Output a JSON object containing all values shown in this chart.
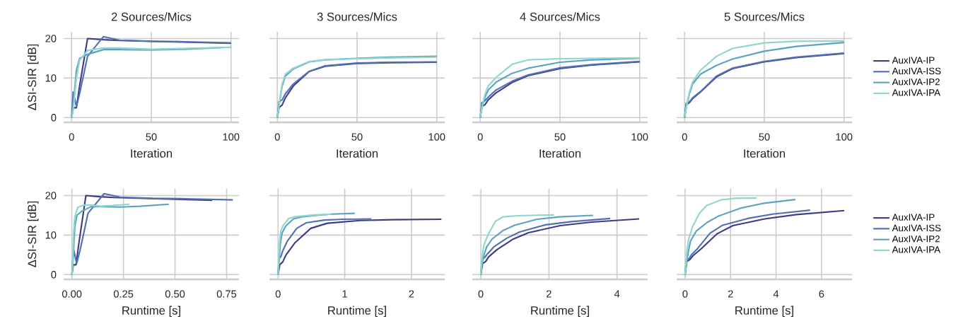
{
  "chart_data": [
    {
      "type": "line",
      "title": "2 Sources/Mics",
      "xlabel": "Iteration",
      "ylabel": "ΔSI-SIR [dB]",
      "xlim": [
        -5,
        105
      ],
      "ylim": [
        -1.2,
        21.7
      ],
      "xticks": [
        0,
        50,
        100
      ],
      "yticks": [
        0,
        10,
        20
      ],
      "grid": true,
      "line_style": "solid",
      "series": [
        {
          "color": "#3f3c86",
          "x": [
            0,
            1,
            3,
            5,
            10,
            20,
            30,
            50,
            70,
            100
          ],
          "values": [
            0,
            2.5,
            2.5,
            8,
            20,
            19.7,
            19.5,
            19.3,
            19.1,
            18.8
          ]
        },
        {
          "color": "#5070b6",
          "x": [
            0,
            1,
            3,
            5,
            10,
            20,
            30,
            50,
            70,
            100
          ],
          "values": [
            0,
            6.5,
            2.8,
            6,
            15.5,
            20.5,
            19.6,
            19.3,
            19.2,
            18.9
          ]
        },
        {
          "color": "#5aa3c2",
          "x": [
            0,
            1,
            3,
            5,
            10,
            20,
            30,
            50,
            70,
            100
          ],
          "values": [
            0,
            3,
            12,
            15,
            16,
            17.2,
            17.2,
            17.1,
            17.3,
            17.8
          ]
        },
        {
          "color": "#8fd6cc",
          "x": [
            0,
            1,
            3,
            5,
            10,
            20,
            30,
            50,
            70,
            100
          ],
          "values": [
            0,
            2,
            10,
            14.5,
            17,
            17.6,
            17.6,
            17.3,
            17.5,
            17.8
          ]
        }
      ]
    },
    {
      "type": "line",
      "title": "3 Sources/Mics",
      "xlabel": "Iteration",
      "xlim": [
        -5,
        105
      ],
      "ylim": [
        -1.2,
        21.7
      ],
      "xticks": [
        0,
        50,
        100
      ],
      "yticks": [
        0,
        10,
        20
      ],
      "grid": true,
      "line_style": "solid",
      "tick_labels": "x",
      "series": [
        {
          "color": "#3f3c86",
          "x": [
            0,
            1,
            3,
            5,
            10,
            20,
            30,
            50,
            70,
            100
          ],
          "values": [
            0,
            2.5,
            3.2,
            5,
            8,
            11.7,
            13,
            13.7,
            13.9,
            14
          ]
        },
        {
          "color": "#5070b6",
          "x": [
            0,
            1,
            3,
            5,
            10,
            20,
            30,
            50,
            70,
            100
          ],
          "values": [
            0,
            4,
            4.5,
            6,
            8.5,
            11.7,
            13.1,
            13.8,
            14,
            14.1
          ]
        },
        {
          "color": "#5aa3c2",
          "x": [
            0,
            1,
            3,
            5,
            10,
            20,
            30,
            50,
            70,
            100
          ],
          "values": [
            0,
            3,
            8,
            10.5,
            12.3,
            14.1,
            14.6,
            15,
            15.3,
            15.5
          ]
        },
        {
          "color": "#8fd6cc",
          "x": [
            0,
            1,
            3,
            5,
            10,
            20,
            30,
            50,
            70,
            100
          ],
          "values": [
            0,
            3,
            8.5,
            11,
            12.5,
            14.2,
            14.6,
            14.9,
            15.1,
            15.3
          ]
        }
      ]
    },
    {
      "type": "line",
      "title": "4 Sources/Mics",
      "xlabel": "Iteration",
      "xlim": [
        -5,
        105
      ],
      "ylim": [
        -1.2,
        21.7
      ],
      "xticks": [
        0,
        50,
        100
      ],
      "yticks": [
        0,
        10,
        20
      ],
      "grid": true,
      "line_style": "solid",
      "tick_labels": "x",
      "series": [
        {
          "color": "#3f3c86",
          "x": [
            0,
            1,
            3,
            5,
            10,
            20,
            30,
            50,
            70,
            100
          ],
          "values": [
            0,
            2.8,
            3.3,
            4.5,
            6.3,
            8.9,
            10.6,
            12.4,
            13.3,
            14.1
          ]
        },
        {
          "color": "#5070b6",
          "x": [
            0,
            1,
            3,
            5,
            10,
            20,
            30,
            50,
            70,
            100
          ],
          "values": [
            0,
            3.8,
            4.3,
            5.2,
            7,
            9.2,
            10.8,
            12.6,
            13.4,
            14.2
          ]
        },
        {
          "color": "#5aa3c2",
          "x": [
            0,
            1,
            3,
            5,
            10,
            20,
            30,
            50,
            70,
            100
          ],
          "values": [
            0,
            2.5,
            5.2,
            7,
            9,
            11.2,
            12.5,
            14,
            14.6,
            15
          ]
        },
        {
          "color": "#8fd6cc",
          "x": [
            0,
            1,
            3,
            5,
            10,
            20,
            30,
            50,
            70,
            100
          ],
          "values": [
            0,
            2.5,
            6,
            8,
            10.2,
            13.5,
            14.6,
            14.9,
            15,
            15.1
          ]
        }
      ]
    },
    {
      "type": "line",
      "title": "5 Sources/Mics",
      "xlabel": "Iteration",
      "xlim": [
        -5,
        105
      ],
      "ylim": [
        -1.2,
        21.7
      ],
      "xticks": [
        0,
        50,
        100
      ],
      "yticks": [
        0,
        10,
        20
      ],
      "grid": true,
      "line_style": "solid",
      "tick_labels": "x",
      "legend": "right",
      "series": [
        {
          "name": "AuxIVA-IP",
          "color": "#3f3c86",
          "x": [
            0,
            1,
            3,
            5,
            10,
            20,
            30,
            50,
            70,
            100
          ],
          "values": [
            0,
            3.3,
            3.8,
            4.8,
            6.5,
            10.3,
            12.4,
            14.1,
            15.2,
            16.2
          ]
        },
        {
          "name": "AuxIVA-ISS",
          "color": "#5070b6",
          "x": [
            0,
            1,
            3,
            5,
            10,
            20,
            30,
            50,
            70,
            100
          ],
          "values": [
            0,
            3.6,
            4,
            5,
            6.6,
            10.5,
            12.5,
            14.2,
            15.3,
            16.3
          ]
        },
        {
          "name": "AuxIVA-IP2",
          "color": "#5aa3c2",
          "x": [
            0,
            1,
            3,
            5,
            10,
            20,
            30,
            50,
            70,
            100
          ],
          "values": [
            0,
            2.5,
            6,
            8.5,
            11,
            13.2,
            14.8,
            16.8,
            18,
            19
          ]
        },
        {
          "name": "AuxIVA-IPA",
          "color": "#8fd6cc",
          "x": [
            0,
            1,
            3,
            5,
            10,
            20,
            30,
            50,
            70,
            100
          ],
          "values": [
            0,
            2.5,
            6.5,
            9,
            12,
            15.5,
            17.5,
            18.9,
            19.3,
            19.4
          ]
        }
      ]
    },
    {
      "type": "line",
      "xlabel": "Runtime [s]",
      "ylabel": "ΔSI-SIR [dB]",
      "xlim": [
        -0.04,
        0.81
      ],
      "ylim": [
        -1.2,
        21.7
      ],
      "xticks": [
        {
          "value": 0,
          "label": "0.00"
        },
        0.25,
        {
          "value": 0.5,
          "label": "0.50"
        },
        0.75
      ],
      "yticks": [
        0,
        10,
        20
      ],
      "grid": true,
      "line_style": "solid",
      "series": [
        {
          "color": "#3f3c86",
          "x": [
            0,
            0.007,
            0.02,
            0.034,
            0.068,
            0.136,
            0.204,
            0.34,
            0.476,
            0.68
          ],
          "values": [
            0,
            2.5,
            2.5,
            8,
            20,
            19.7,
            19.5,
            19.3,
            19.1,
            18.8
          ]
        },
        {
          "color": "#5070b6",
          "x": [
            0,
            0.008,
            0.023,
            0.039,
            0.078,
            0.156,
            0.234,
            0.39,
            0.546,
            0.78
          ],
          "values": [
            0,
            6.5,
            2.8,
            6,
            15.5,
            20.5,
            19.6,
            19.3,
            19.2,
            18.9
          ]
        },
        {
          "color": "#5aa3c2",
          "x": [
            0,
            0.005,
            0.014,
            0.024,
            0.047,
            0.094,
            0.141,
            0.235,
            0.329,
            0.47
          ],
          "values": [
            0,
            3,
            12,
            15,
            16,
            17.2,
            17.2,
            17.1,
            17.3,
            17.8
          ]
        },
        {
          "color": "#8fd6cc",
          "x": [
            0,
            0.003,
            0.008,
            0.014,
            0.028,
            0.056,
            0.084,
            0.14,
            0.196,
            0.28
          ],
          "values": [
            0,
            2,
            10,
            14.5,
            17,
            17.6,
            17.6,
            17.3,
            17.5,
            17.8
          ]
        }
      ]
    },
    {
      "type": "line",
      "xlabel": "Runtime [s]",
      "xlim": [
        -0.13,
        2.5
      ],
      "ylim": [
        -1.2,
        21.7
      ],
      "xticks": [
        0,
        1,
        2
      ],
      "yticks": [
        0,
        10,
        20
      ],
      "grid": true,
      "line_style": "solid",
      "tick_labels": "x",
      "series": [
        {
          "color": "#3f3c86",
          "x": [
            0,
            0.025,
            0.07,
            0.12,
            0.25,
            0.49,
            0.74,
            1.23,
            1.72,
            2.45
          ],
          "values": [
            0,
            2.5,
            3.2,
            5,
            8,
            11.7,
            13,
            13.7,
            13.9,
            14
          ]
        },
        {
          "color": "#5070b6",
          "x": [
            0,
            0.014,
            0.04,
            0.07,
            0.14,
            0.28,
            0.42,
            0.7,
            0.98,
            1.4
          ],
          "values": [
            0,
            4,
            4.5,
            6,
            8.5,
            11.7,
            13.1,
            13.8,
            14,
            14.1
          ]
        },
        {
          "color": "#5aa3c2",
          "x": [
            0,
            0.012,
            0.035,
            0.06,
            0.115,
            0.23,
            0.35,
            0.58,
            0.8,
            1.15
          ],
          "values": [
            0,
            3,
            8,
            10.5,
            12.3,
            14.1,
            14.6,
            15,
            15.3,
            15.5
          ]
        },
        {
          "color": "#8fd6cc",
          "x": [
            0,
            0.008,
            0.024,
            0.04,
            0.08,
            0.16,
            0.24,
            0.4,
            0.56,
            0.8
          ],
          "values": [
            0,
            3,
            8.5,
            11,
            12.5,
            14.2,
            14.6,
            14.9,
            15.1,
            15.3
          ]
        }
      ]
    },
    {
      "type": "line",
      "xlabel": "Runtime [s]",
      "xlim": [
        -0.25,
        4.9
      ],
      "ylim": [
        -1.2,
        21.7
      ],
      "xticks": [
        0,
        2,
        4
      ],
      "yticks": [
        0,
        10,
        20
      ],
      "grid": true,
      "line_style": "solid",
      "tick_labels": "x",
      "series": [
        {
          "color": "#3f3c86",
          "x": [
            0,
            0.05,
            0.14,
            0.23,
            0.47,
            0.93,
            1.4,
            2.33,
            3.26,
            4.65
          ],
          "values": [
            0,
            2.8,
            3.3,
            4.5,
            6.3,
            8.9,
            10.6,
            12.4,
            13.3,
            14.1
          ]
        },
        {
          "color": "#5070b6",
          "x": [
            0,
            0.04,
            0.11,
            0.19,
            0.38,
            0.76,
            1.14,
            1.9,
            2.66,
            3.8
          ],
          "values": [
            0,
            3.8,
            4.3,
            5.2,
            7,
            9.2,
            10.8,
            12.6,
            13.4,
            14.2
          ]
        },
        {
          "color": "#5aa3c2",
          "x": [
            0,
            0.03,
            0.1,
            0.17,
            0.33,
            0.66,
            0.99,
            1.65,
            2.31,
            3.3
          ],
          "values": [
            0,
            2.5,
            5.2,
            7,
            9,
            11.2,
            12.5,
            14,
            14.6,
            15
          ]
        },
        {
          "color": "#8fd6cc",
          "x": [
            0,
            0.02,
            0.06,
            0.11,
            0.22,
            0.43,
            0.65,
            1.08,
            1.5,
            2.15
          ],
          "values": [
            0,
            2.5,
            6,
            8,
            10.2,
            13.5,
            14.6,
            14.9,
            15,
            15.1
          ]
        }
      ]
    },
    {
      "type": "line",
      "xlabel": "Runtime [s]",
      "xlim": [
        -0.37,
        7.34
      ],
      "ylim": [
        -1.2,
        21.7
      ],
      "xticks": [
        0,
        2,
        4,
        6
      ],
      "yticks": [
        0,
        10,
        20
      ],
      "grid": true,
      "line_style": "solid",
      "tick_labels": "x",
      "legend": "right",
      "series": [
        {
          "name": "AuxIVA-IP",
          "color": "#3f3c86",
          "x": [
            0,
            0.07,
            0.21,
            0.35,
            0.7,
            1.4,
            2.1,
            3.5,
            4.9,
            7
          ],
          "values": [
            0,
            3.3,
            3.8,
            4.8,
            6.5,
            10.3,
            12.4,
            14.1,
            15.2,
            16.2
          ]
        },
        {
          "name": "AuxIVA-ISS",
          "color": "#5070b6",
          "x": [
            0,
            0.055,
            0.17,
            0.28,
            0.55,
            1.1,
            1.65,
            2.75,
            3.85,
            5.5
          ],
          "values": [
            0,
            3.6,
            4,
            5,
            6.6,
            10.5,
            12.5,
            14.2,
            15.3,
            16.3
          ]
        },
        {
          "name": "AuxIVA-IP2",
          "color": "#5aa3c2",
          "x": [
            0,
            0.05,
            0.15,
            0.24,
            0.49,
            0.97,
            1.46,
            2.43,
            3.4,
            4.85
          ],
          "values": [
            0,
            2.5,
            6,
            8.5,
            11,
            13.2,
            14.8,
            16.8,
            18,
            19
          ]
        },
        {
          "name": "AuxIVA-IPA",
          "color": "#8fd6cc",
          "x": [
            0,
            0.03,
            0.09,
            0.16,
            0.32,
            0.63,
            0.95,
            1.58,
            2.2,
            3.15
          ],
          "values": [
            0,
            2.5,
            6.5,
            9,
            12,
            15.5,
            17.5,
            18.9,
            19.3,
            19.4
          ]
        }
      ]
    }
  ]
}
